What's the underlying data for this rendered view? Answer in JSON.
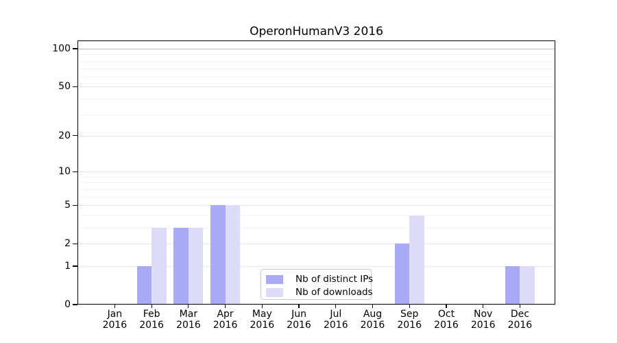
{
  "title": "OperonHumanV3 2016",
  "chart_data": {
    "type": "bar",
    "title": "OperonHumanV3 2016",
    "categories": [
      "Jan",
      "Feb",
      "Mar",
      "Apr",
      "May",
      "Jun",
      "Jul",
      "Aug",
      "Sep",
      "Oct",
      "Nov",
      "Dec"
    ],
    "x_year": "2016",
    "series": [
      {
        "name": "Nb of distinct IPs",
        "color": "#a9a9f5",
        "values": [
          0,
          1,
          3,
          5,
          0,
          0,
          0,
          0,
          2,
          0,
          0,
          1
        ]
      },
      {
        "name": "Nb of downloads",
        "color": "#dcdcf9",
        "values": [
          0,
          3,
          3,
          5,
          0,
          0,
          0,
          0,
          4,
          0,
          0,
          1
        ]
      }
    ],
    "xlabel": "",
    "ylabel": "",
    "yscale": "log10(1+x)",
    "yticks": [
      0,
      1,
      2,
      5,
      10,
      20,
      50,
      100
    ],
    "minor_gridline_values": [
      3,
      4,
      6,
      7,
      8,
      9,
      30,
      40,
      60,
      70,
      80,
      90
    ],
    "ylim": [
      0,
      116
    ],
    "grid": true,
    "legend_position": "inside-bottom-center"
  },
  "colors": {
    "background": "#ffffff",
    "axis": "#000000",
    "gridline_major": "#e4e4e4",
    "gridline_minor": "#f2f2f2",
    "gridline_100": "#b9b9b9",
    "bar_distinct_ips": "#a9a9f5",
    "bar_downloads": "#dcdcf9",
    "legend_border": "#c8c8c8"
  }
}
